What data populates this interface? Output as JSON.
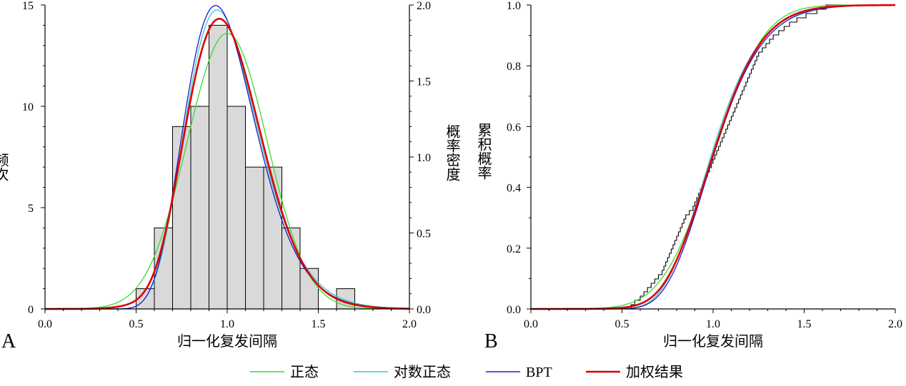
{
  "chart_data": [
    {
      "panel_label": "A",
      "type": "bar",
      "xlabel": "归一化复发间隔",
      "ylabel_left": "频次",
      "ylabel_right": "概率密度",
      "xlim": [
        0.0,
        2.0
      ],
      "ylim_left": [
        0,
        15
      ],
      "ylim_right": [
        0.0,
        2.0
      ],
      "x_ticks": [
        "0.0",
        "0.5",
        "1.0",
        "1.5",
        "2.0"
      ],
      "y_ticks_left": [
        "0",
        "5",
        "10",
        "15"
      ],
      "y_ticks_right": [
        "0.0",
        "0.5",
        "1.0",
        "1.5",
        "2.0"
      ],
      "histogram": {
        "bin_edges": [
          0.5,
          0.6,
          0.7,
          0.8,
          0.9,
          1.0,
          1.1,
          1.2,
          1.3,
          1.4,
          1.5,
          1.6,
          1.7
        ],
        "counts": [
          1,
          4,
          9,
          10,
          14,
          10,
          7,
          7,
          4,
          2,
          0,
          1
        ],
        "fill": "#d9d9d9"
      },
      "density_curves": [
        {
          "name": "正态",
          "model": "normal",
          "mean": 1.0,
          "sd": 0.22,
          "color": "#33dd33",
          "width": 1.3
        },
        {
          "name": "对数正态",
          "model": "lognormal",
          "mu": -0.013,
          "sigma": 0.21,
          "color": "#33cccc",
          "width": 1.3
        },
        {
          "name": "BPT",
          "model": "bpt",
          "mu": 1.0,
          "alpha": 0.21,
          "color": "#1a1acc",
          "width": 1.3
        },
        {
          "name": "加权结果",
          "model": "mixture",
          "color": "#e00000",
          "width": 2.6
        }
      ]
    },
    {
      "panel_label": "B",
      "type": "line",
      "xlabel": "归一化复发间隔",
      "ylabel": "累积概率",
      "xlim": [
        0.0,
        2.0
      ],
      "ylim": [
        0.0,
        1.0
      ],
      "x_ticks": [
        "0.0",
        "0.5",
        "1.0",
        "1.5",
        "2.0"
      ],
      "y_ticks": [
        "0.0",
        "0.2",
        "0.4",
        "0.6",
        "0.8",
        "1.0"
      ],
      "empirical_cdf": {
        "color": "#000000",
        "x": [
          0.55,
          0.57,
          0.6,
          0.62,
          0.64,
          0.66,
          0.68,
          0.7,
          0.72,
          0.73,
          0.74,
          0.75,
          0.76,
          0.77,
          0.78,
          0.79,
          0.8,
          0.81,
          0.82,
          0.83,
          0.84,
          0.85,
          0.87,
          0.89,
          0.9,
          0.91,
          0.92,
          0.93,
          0.94,
          0.95,
          0.96,
          0.97,
          0.98,
          0.99,
          1.0,
          1.01,
          1.02,
          1.03,
          1.04,
          1.05,
          1.06,
          1.07,
          1.08,
          1.09,
          1.1,
          1.11,
          1.12,
          1.13,
          1.14,
          1.15,
          1.16,
          1.17,
          1.18,
          1.19,
          1.2,
          1.21,
          1.22,
          1.23,
          1.24,
          1.25,
          1.27,
          1.29,
          1.31,
          1.33,
          1.36,
          1.39,
          1.42,
          1.46,
          1.51,
          1.57,
          1.62
        ]
      },
      "cdf_curves": [
        {
          "name": "正态",
          "color": "#33dd33",
          "width": 1.3
        },
        {
          "name": "对数正态",
          "color": "#33cccc",
          "width": 1.3
        },
        {
          "name": "BPT",
          "color": "#1a1acc",
          "width": 1.3
        },
        {
          "name": "加权结果",
          "color": "#e00000",
          "width": 2.6
        }
      ]
    }
  ],
  "legend": {
    "placement": "bottom-center",
    "items": [
      {
        "label": "正态",
        "color": "#33dd33"
      },
      {
        "label": "对数正态",
        "color": "#33cccc"
      },
      {
        "label": "BPT",
        "color": "#1a1acc"
      },
      {
        "label": "加权结果",
        "color": "#e00000"
      }
    ]
  }
}
